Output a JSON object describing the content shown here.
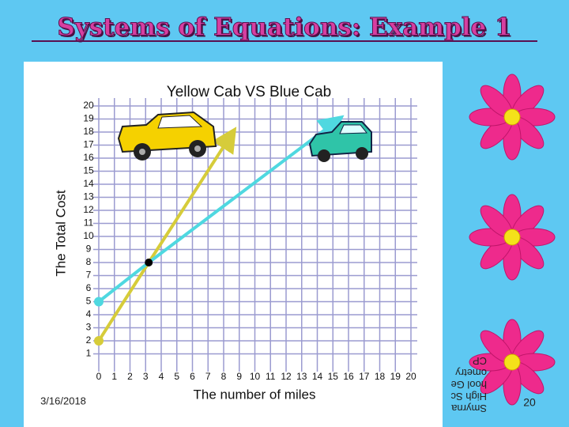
{
  "slide": {
    "title": "Systems of Equations: Example 1",
    "date": "3/16/2018",
    "footer": "Smyrna High School Geometry CP",
    "page_number": "20"
  },
  "chart_data": {
    "type": "line",
    "title": "Yellow Cab VS Blue Cab",
    "x_label": "The number of miles",
    "y_label": "The Total Cost",
    "xlim": [
      0,
      20
    ],
    "ylim": [
      0,
      20
    ],
    "xticks": [
      0,
      1,
      2,
      3,
      4,
      5,
      6,
      7,
      8,
      9,
      10,
      11,
      12,
      13,
      14,
      15,
      16,
      17,
      18,
      19,
      20
    ],
    "yticks": [
      1,
      2,
      3,
      4,
      5,
      6,
      7,
      8,
      9,
      10,
      11,
      12,
      13,
      14,
      15,
      16,
      17,
      18,
      19,
      20
    ],
    "grid": true,
    "series": [
      {
        "color": "#d6cc3a",
        "x": [
          0,
          3.2,
          8.6
        ],
        "values": [
          2,
          8,
          18
        ]
      },
      {
        "color": "#4fd8e0",
        "x": [
          0,
          3.2,
          15.4
        ],
        "values": [
          5,
          8,
          19
        ]
      }
    ],
    "point": {
      "x": 3.2,
      "y": 8,
      "color": "#000000"
    }
  }
}
